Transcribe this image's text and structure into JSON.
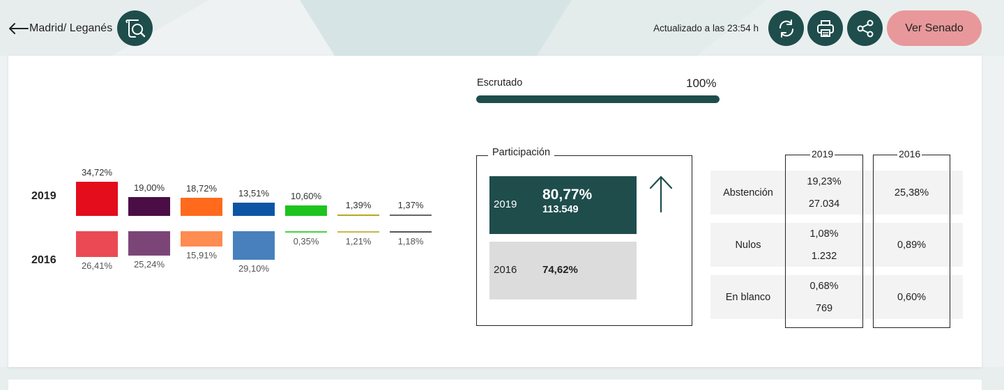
{
  "header": {
    "back_label": "Madrid/ Leganés",
    "updated": "Actualizado a las 23:54 h",
    "senado_label": "Ver Senado",
    "icons": {
      "back": "arrow-left-icon",
      "logo": "search-document-icon",
      "refresh": "refresh-icon",
      "print": "print-icon",
      "share": "share-icon"
    }
  },
  "results": {
    "year_a": "2019",
    "year_b": "2016",
    "parties": [
      {
        "color_2019": "#e30d1b",
        "color_2016": "#ea4a54",
        "pct_2019": 34.72,
        "pct_2016": 26.41,
        "label_2019": "34,72%",
        "label_2016": "26,41%"
      },
      {
        "color_2019": "#4a0d45",
        "color_2016": "#7b4677",
        "pct_2019": 19.0,
        "pct_2016": 25.24,
        "label_2019": "19,00%",
        "label_2016": "25,24%"
      },
      {
        "color_2019": "#ff6a1c",
        "color_2016": "#ff8c51",
        "pct_2019": 18.72,
        "pct_2016": 15.91,
        "label_2019": "18,72%",
        "label_2016": "15,91%"
      },
      {
        "color_2019": "#0c55a5",
        "color_2016": "#4780bd",
        "pct_2019": 13.51,
        "pct_2016": 29.1,
        "label_2019": "13,51%",
        "label_2016": "29,10%"
      },
      {
        "color_2019": "#1ec31e",
        "color_2016": "#47d147",
        "pct_2019": 10.6,
        "pct_2016": 0.35,
        "label_2019": "10,60%",
        "label_2016": "0,35%"
      },
      {
        "color_2019": "#b5a820",
        "color_2016": "#c4b94d",
        "pct_2019": 1.39,
        "pct_2016": 1.21,
        "label_2019": "1,39%",
        "label_2016": "1,21%"
      },
      {
        "color_2019": "#666666",
        "color_2016": "#555555",
        "pct_2019": 1.37,
        "pct_2016": 1.18,
        "label_2019": "1,37%",
        "label_2016": "1,18%"
      }
    ]
  },
  "escrutado": {
    "label": "Escrutado",
    "value": "100%",
    "fraction": 1.0,
    "color": "#1e4d4c"
  },
  "participacion": {
    "title": "Participación",
    "trend_icon": "arrow-up-icon",
    "row_2019": {
      "year": "2019",
      "pct": "80,77%",
      "votes": "113.549"
    },
    "row_2016": {
      "year": "2016",
      "pct": "74,62%"
    }
  },
  "table": {
    "col_2019": "2019",
    "col_2016": "2016",
    "rows": [
      {
        "label": "Abstención",
        "v2019_pct": "19,23%",
        "v2019_num": "27.034",
        "v2016": "25,38%"
      },
      {
        "label": "Nulos",
        "v2019_pct": "1,08%",
        "v2019_num": "1.232",
        "v2016": "0,89%"
      },
      {
        "label": "En blanco",
        "v2019_pct": "0,68%",
        "v2019_num": "769",
        "v2016": "0,60%"
      }
    ]
  }
}
